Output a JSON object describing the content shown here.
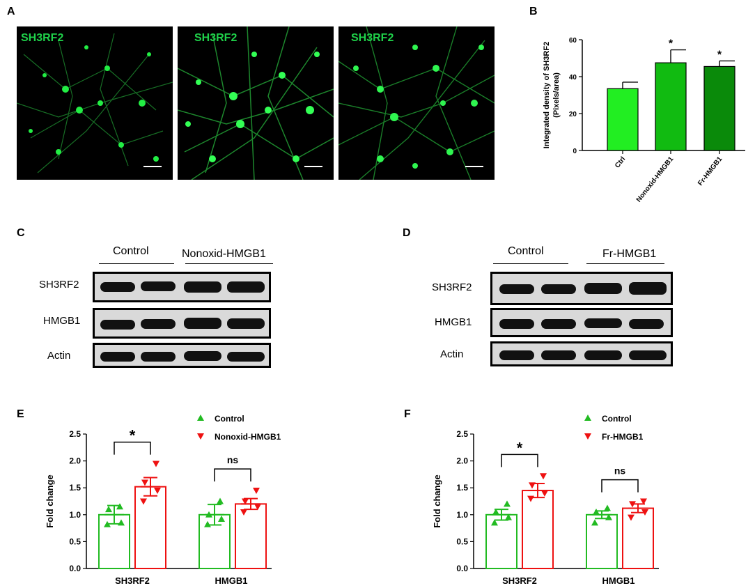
{
  "panels": {
    "a": "A",
    "b": "B",
    "c": "C",
    "d": "D",
    "e": "E",
    "f": "F"
  },
  "micro_label": "SH3RF2",
  "chart_data": [
    {
      "id": "B",
      "type": "bar",
      "categories": [
        "Ctrl",
        "Nonoxid-HMGB1",
        "Fr-HMGB1"
      ],
      "values": [
        33.5,
        47.5,
        45.5
      ],
      "errors": [
        3.5,
        7,
        3
      ],
      "significance": [
        "",
        "*",
        "*"
      ],
      "colors": [
        "#22ee22",
        "#11bb11",
        "#0a8a0a"
      ],
      "ylabel": "Integrated density of SH3RF2",
      "ylabel2": "(Pixels/area)",
      "ylim": [
        0,
        60
      ],
      "yticks": [
        0,
        20,
        40,
        60
      ]
    },
    {
      "id": "E",
      "type": "bar",
      "categories": [
        "SH3RF2",
        "HMGB1"
      ],
      "series": [
        {
          "name": "Control",
          "values": [
            1.0,
            1.0
          ],
          "errors": [
            0.17,
            0.19
          ],
          "points": [
            [
              0.82,
              0.85,
              1.1,
              1.15
            ],
            [
              0.82,
              0.92,
              1.0,
              1.25
            ]
          ],
          "color": "#22bb22"
        },
        {
          "name": "Nonoxid-HMGB1",
          "values": [
            1.52,
            1.2
          ],
          "errors": [
            0.17,
            0.1
          ],
          "points": [
            [
              1.25,
              1.45,
              1.6,
              1.95
            ],
            [
              1.05,
              1.15,
              1.25,
              1.45
            ]
          ],
          "color": "#ee1111"
        }
      ],
      "brackets": [
        "*",
        "ns"
      ],
      "ylabel": "Fold change",
      "ylim": [
        0,
        2.5
      ],
      "yticks": [
        "0.0",
        "0.5",
        "1.0",
        "1.5",
        "2.0",
        "2.5"
      ]
    },
    {
      "id": "F",
      "type": "bar",
      "categories": [
        "SH3RF2",
        "HMGB1"
      ],
      "series": [
        {
          "name": "Control",
          "values": [
            1.0,
            1.0
          ],
          "errors": [
            0.1,
            0.07
          ],
          "points": [
            [
              0.85,
              0.95,
              1.05,
              1.2
            ],
            [
              0.85,
              0.95,
              1.05,
              1.12
            ]
          ],
          "color": "#22bb22"
        },
        {
          "name": "Fr-HMGB1",
          "values": [
            1.45,
            1.12
          ],
          "errors": [
            0.13,
            0.08
          ],
          "points": [
            [
              1.3,
              1.4,
              1.55,
              1.72
            ],
            [
              0.95,
              1.05,
              1.2,
              1.25
            ]
          ],
          "color": "#ee1111"
        }
      ],
      "brackets": [
        "*",
        "ns"
      ],
      "ylabel": "Fold change",
      "ylim": [
        0,
        2.5
      ],
      "yticks": [
        "0.0",
        "0.5",
        "1.0",
        "1.5",
        "2.0",
        "2.5"
      ]
    }
  ],
  "blots": {
    "c": {
      "control": "Control",
      "treated": "Nonoxid-HMGB1",
      "rows": [
        "SH3RF2",
        "HMGB1",
        "Actin"
      ]
    },
    "d": {
      "control": "Control",
      "treated": "Fr-HMGB1",
      "rows": [
        "SH3RF2",
        "HMGB1",
        "Actin"
      ]
    }
  }
}
